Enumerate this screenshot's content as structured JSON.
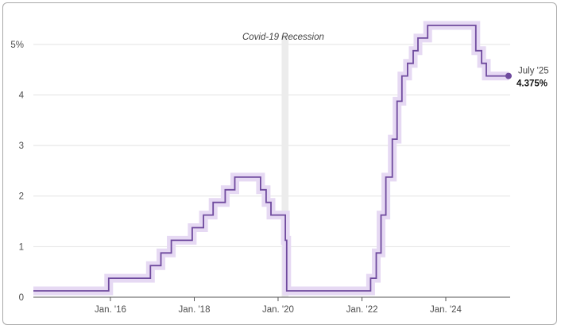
{
  "chart_data": {
    "type": "line",
    "step": true,
    "title": "",
    "xlabel": "",
    "ylabel": "",
    "x_domain": [
      "2014-03-01",
      "2025-07-01"
    ],
    "ylim": [
      0,
      5.5
    ],
    "y_ticks": [
      {
        "value": 0,
        "label": "0"
      },
      {
        "value": 1,
        "label": "1"
      },
      {
        "value": 2,
        "label": "2"
      },
      {
        "value": 3,
        "label": "3"
      },
      {
        "value": 4,
        "label": "4"
      },
      {
        "value": 5,
        "label": "5%"
      }
    ],
    "x_ticks": [
      {
        "date": "2016-01-01",
        "label": "Jan. '16"
      },
      {
        "date": "2018-01-01",
        "label": "Jan. '18"
      },
      {
        "date": "2020-01-01",
        "label": "Jan. '20"
      },
      {
        "date": "2022-01-01",
        "label": "Jan. '22"
      },
      {
        "date": "2024-01-01",
        "label": "Jan. '24"
      }
    ],
    "grid": true,
    "colors": {
      "line": "#6f4a9e",
      "band": "#e6d9f3",
      "grid": "#e3e3e3",
      "recession": "#ececec",
      "axis": "#555555"
    },
    "recession": {
      "label": "Covid-19 Recession",
      "start": "2020-02-01",
      "end": "2020-04-01"
    },
    "series": [
      {
        "points": [
          {
            "date": "2014-03-01",
            "value": 0.125
          },
          {
            "date": "2015-12-17",
            "value": 0.375
          },
          {
            "date": "2016-12-15",
            "value": 0.625
          },
          {
            "date": "2017-03-16",
            "value": 0.875
          },
          {
            "date": "2017-06-15",
            "value": 1.125
          },
          {
            "date": "2017-12-14",
            "value": 1.375
          },
          {
            "date": "2018-03-22",
            "value": 1.625
          },
          {
            "date": "2018-06-14",
            "value": 1.875
          },
          {
            "date": "2018-09-27",
            "value": 2.125
          },
          {
            "date": "2018-12-20",
            "value": 2.375
          },
          {
            "date": "2019-08-01",
            "value": 2.125
          },
          {
            "date": "2019-09-19",
            "value": 1.875
          },
          {
            "date": "2019-10-31",
            "value": 1.625
          },
          {
            "date": "2020-03-04",
            "value": 1.125
          },
          {
            "date": "2020-03-16",
            "value": 0.125
          },
          {
            "date": "2022-03-17",
            "value": 0.375
          },
          {
            "date": "2022-05-05",
            "value": 0.875
          },
          {
            "date": "2022-06-16",
            "value": 1.625
          },
          {
            "date": "2022-07-28",
            "value": 2.375
          },
          {
            "date": "2022-09-22",
            "value": 3.125
          },
          {
            "date": "2022-11-03",
            "value": 3.875
          },
          {
            "date": "2022-12-15",
            "value": 4.375
          },
          {
            "date": "2023-02-02",
            "value": 4.625
          },
          {
            "date": "2023-03-23",
            "value": 4.875
          },
          {
            "date": "2023-05-04",
            "value": 5.125
          },
          {
            "date": "2023-07-27",
            "value": 5.375
          },
          {
            "date": "2024-09-19",
            "value": 4.875
          },
          {
            "date": "2024-11-08",
            "value": 4.625
          },
          {
            "date": "2024-12-19",
            "value": 4.375
          },
          {
            "date": "2025-07-01",
            "value": 4.375
          }
        ]
      }
    ],
    "end_label": {
      "date_label": "July '25",
      "value_label": "4.375%"
    }
  }
}
